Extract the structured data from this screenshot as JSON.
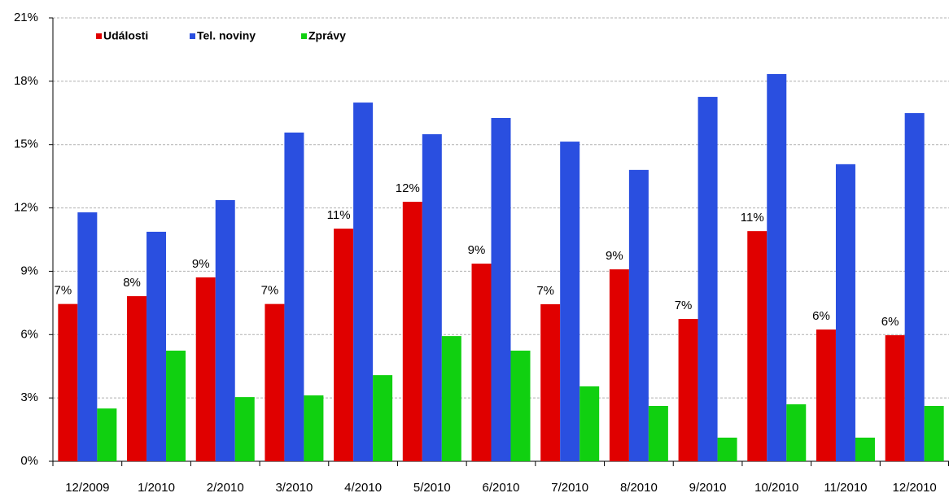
{
  "chart_data": {
    "type": "bar",
    "categories": [
      "12/2009",
      "1/2010",
      "2/2010",
      "3/2010",
      "4/2010",
      "5/2010",
      "6/2010",
      "7/2010",
      "8/2010",
      "9/2010",
      "10/2010",
      "11/2010",
      "12/2010"
    ],
    "series": [
      {
        "name": "Události",
        "color": "#e00000",
        "values": [
          7.45,
          7.82,
          8.71,
          7.45,
          11.02,
          12.29,
          9.36,
          7.44,
          9.09,
          6.74,
          10.9,
          6.24,
          5.97
        ],
        "value_labels": [
          "7%",
          "8%",
          "9%",
          "7%",
          "11%",
          "12%",
          "9%",
          "7%",
          "9%",
          "7%",
          "11%",
          "6%",
          "6%"
        ]
      },
      {
        "name": "Tel. noviny",
        "color": "#2a4fe0",
        "values": [
          11.79,
          10.87,
          12.37,
          15.57,
          16.99,
          15.49,
          16.26,
          15.14,
          13.8,
          17.26,
          18.34,
          14.07,
          16.49
        ]
      },
      {
        "name": "Zprávy",
        "color": "#10d010",
        "values": [
          2.5,
          5.24,
          3.04,
          3.12,
          4.08,
          5.93,
          5.24,
          3.55,
          2.62,
          1.12,
          2.7,
          1.12,
          2.62
        ]
      }
    ],
    "ylim": [
      0,
      21
    ],
    "yticks": [
      {
        "value": 0,
        "label": "0%"
      },
      {
        "value": 3,
        "label": "3%"
      },
      {
        "value": 6,
        "label": "6%"
      },
      {
        "value": 9,
        "label": "9%"
      },
      {
        "value": 12,
        "label": "12%"
      },
      {
        "value": 15,
        "label": "15%"
      },
      {
        "value": 18,
        "label": "18%"
      },
      {
        "value": 21,
        "label": "21%"
      }
    ],
    "grid": true,
    "legend": "top-left"
  }
}
